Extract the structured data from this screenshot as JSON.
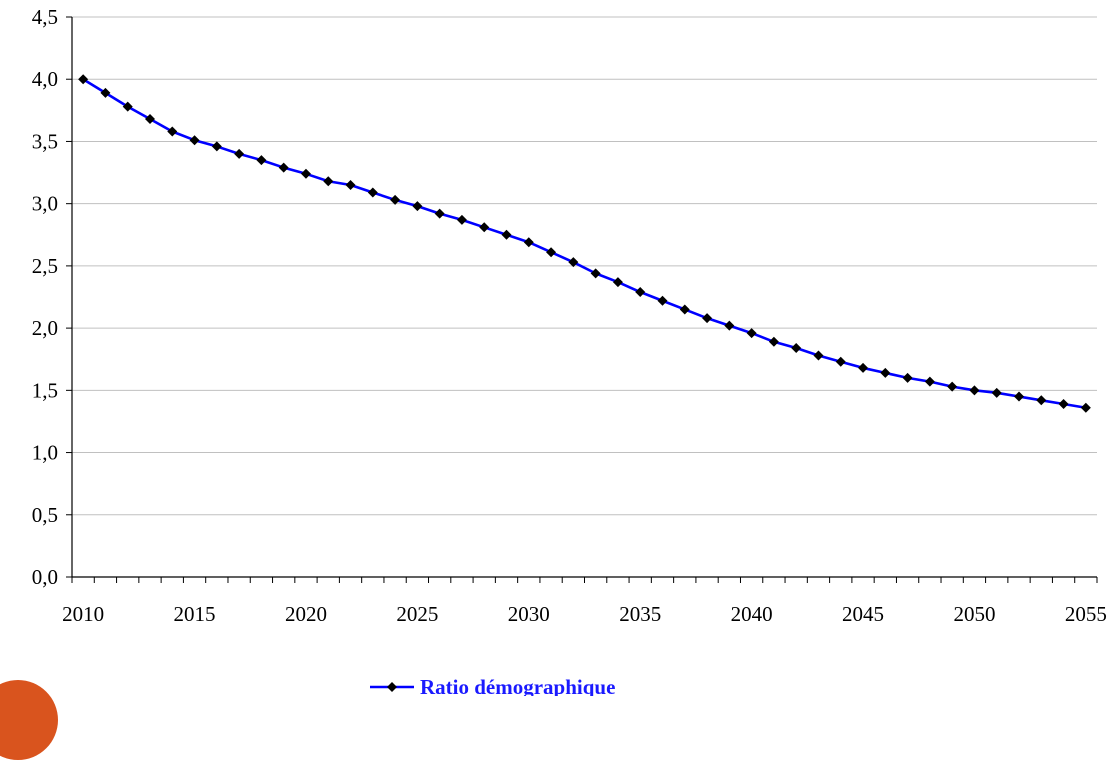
{
  "chart_data": {
    "type": "line",
    "title": "",
    "xlabel": "",
    "ylabel": "",
    "x_tick_labels": [
      "2010",
      "2015",
      "2020",
      "2025",
      "2030",
      "2035",
      "2040",
      "2045",
      "2050",
      "2055"
    ],
    "y_tick_labels": [
      "0,0",
      "0,5",
      "1,0",
      "1,5",
      "2,0",
      "2,5",
      "3,0",
      "3,5",
      "4,0",
      "4,5"
    ],
    "xlim": [
      2010,
      2056
    ],
    "ylim": [
      0,
      4.5
    ],
    "grid": "horizontal",
    "legend_position": "bottom",
    "series": [
      {
        "name": "Ratio démographique",
        "color": "#0000ff",
        "marker_color": "#000000",
        "marker": "diamond",
        "x": [
          2010,
          2011,
          2012,
          2013,
          2014,
          2015,
          2016,
          2017,
          2018,
          2019,
          2020,
          2021,
          2022,
          2023,
          2024,
          2025,
          2026,
          2027,
          2028,
          2029,
          2030,
          2031,
          2032,
          2033,
          2034,
          2035,
          2036,
          2037,
          2038,
          2039,
          2040,
          2041,
          2042,
          2043,
          2044,
          2045,
          2046,
          2047,
          2048,
          2049,
          2050,
          2051,
          2052,
          2053,
          2054,
          2055
        ],
        "values": [
          4.0,
          3.89,
          3.78,
          3.68,
          3.58,
          3.51,
          3.46,
          3.4,
          3.35,
          3.29,
          3.24,
          3.18,
          3.15,
          3.09,
          3.03,
          2.98,
          2.92,
          2.87,
          2.81,
          2.75,
          2.69,
          2.61,
          2.53,
          2.44,
          2.37,
          2.29,
          2.22,
          2.15,
          2.08,
          2.02,
          1.96,
          1.89,
          1.84,
          1.78,
          1.73,
          1.68,
          1.64,
          1.6,
          1.57,
          1.53,
          1.5,
          1.48,
          1.45,
          1.42,
          1.39,
          1.36
        ]
      }
    ]
  },
  "decor": {
    "corner_color": "#d9541e"
  }
}
